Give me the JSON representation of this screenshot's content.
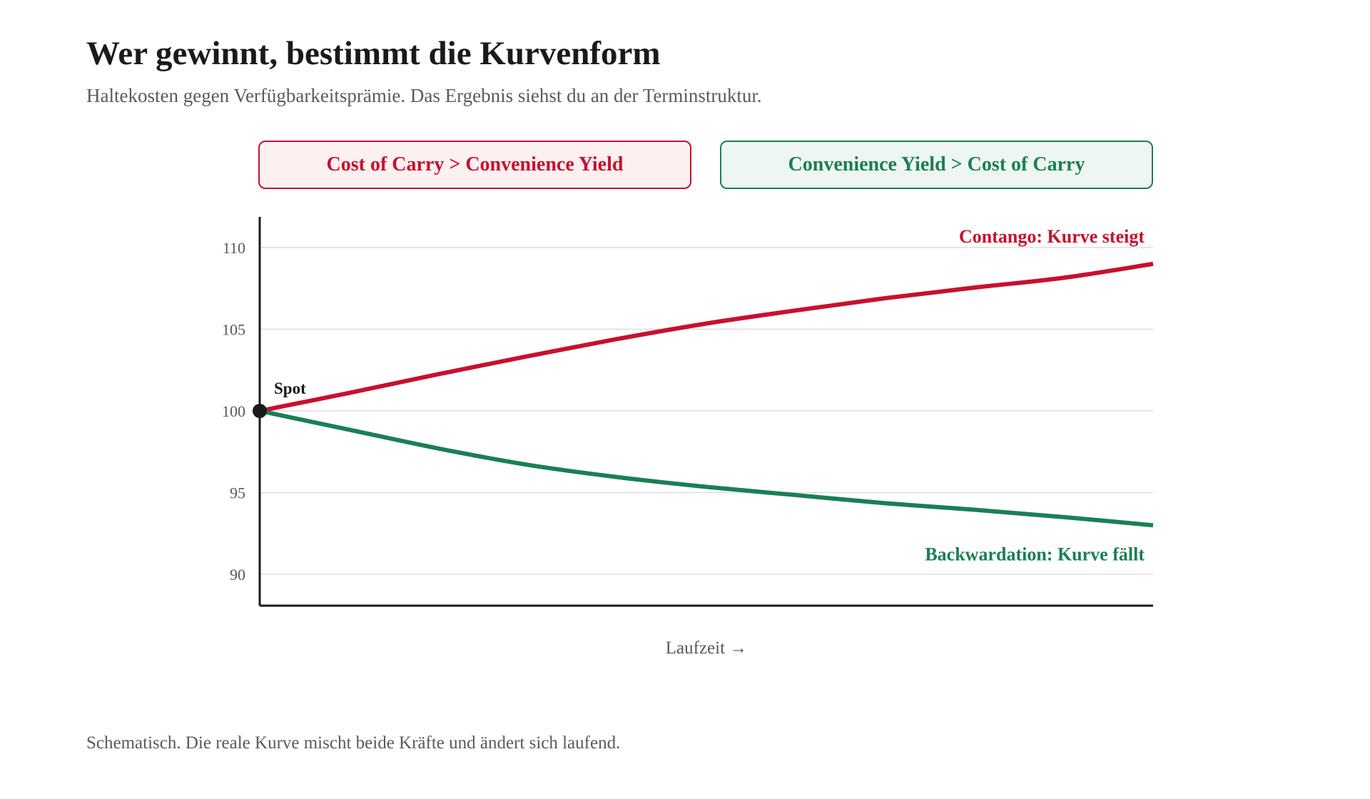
{
  "header": {
    "title": "Wer gewinnt, bestimmt die Kurvenform",
    "subtitle": "Haltekosten gegen Verfügbarkeitsprämie. Das Ergebnis siehst du an der Terminstruktur."
  },
  "legend": {
    "carry_label": "Cost of Carry > Convenience Yield",
    "convenience_label": "Convenience Yield > Cost of Carry"
  },
  "colors": {
    "contango": "#c8102e",
    "backwardation": "#1a7f55",
    "axis": "#1a1a1a",
    "grid": "#dddddd"
  },
  "chart_data": {
    "type": "line",
    "title": "",
    "xlabel": "Laufzeit →",
    "ylabel": "",
    "ylim": [
      88,
      112
    ],
    "yticks": [
      90,
      95,
      100,
      105,
      110
    ],
    "x": [
      0,
      0.1,
      0.2,
      0.3,
      0.4,
      0.5,
      0.6,
      0.7,
      0.8,
      0.9,
      1.0
    ],
    "grid": true,
    "series": [
      {
        "key": "contango",
        "name": "",
        "values": [
          100,
          101.1,
          102.25,
          103.35,
          104.4,
          105.35,
          106.15,
          106.9,
          107.55,
          108.15,
          109
        ],
        "annotation": "Contango: Kurve steigt"
      },
      {
        "key": "backwardation",
        "name": "",
        "values": [
          100,
          98.85,
          97.7,
          96.7,
          95.95,
          95.35,
          94.85,
          94.35,
          93.95,
          93.5,
          93
        ],
        "annotation": "Backwardation: Kurve fällt"
      }
    ],
    "spot": {
      "x": 0,
      "y": 100,
      "label": "Spot"
    }
  },
  "footer": {
    "note": "Schematisch. Die reale Kurve mischt beide Kräfte und ändert sich laufend."
  }
}
